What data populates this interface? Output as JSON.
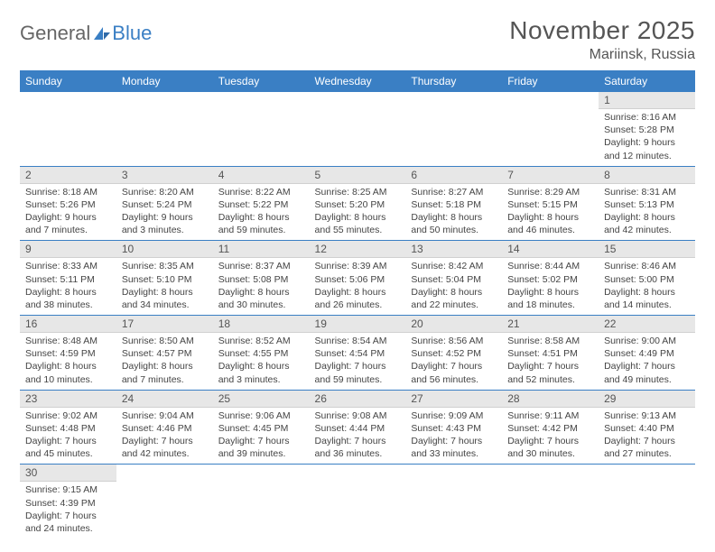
{
  "logo": {
    "text1": "General",
    "text2": "Blue"
  },
  "title": "November 2025",
  "location": "Mariinsk, Russia",
  "colors": {
    "header_bg": "#3a7fc4",
    "header_text": "#ffffff",
    "daynum_bg": "#e7e7e7",
    "separator": "#3a7fc4",
    "body_text": "#444444"
  },
  "weekdays": [
    "Sunday",
    "Monday",
    "Tuesday",
    "Wednesday",
    "Thursday",
    "Friday",
    "Saturday"
  ],
  "weeks": [
    [
      {
        "n": "",
        "l1": "",
        "l2": "",
        "l3": "",
        "l4": ""
      },
      {
        "n": "",
        "l1": "",
        "l2": "",
        "l3": "",
        "l4": ""
      },
      {
        "n": "",
        "l1": "",
        "l2": "",
        "l3": "",
        "l4": ""
      },
      {
        "n": "",
        "l1": "",
        "l2": "",
        "l3": "",
        "l4": ""
      },
      {
        "n": "",
        "l1": "",
        "l2": "",
        "l3": "",
        "l4": ""
      },
      {
        "n": "",
        "l1": "",
        "l2": "",
        "l3": "",
        "l4": ""
      },
      {
        "n": "1",
        "l1": "Sunrise: 8:16 AM",
        "l2": "Sunset: 5:28 PM",
        "l3": "Daylight: 9 hours",
        "l4": "and 12 minutes."
      }
    ],
    [
      {
        "n": "2",
        "l1": "Sunrise: 8:18 AM",
        "l2": "Sunset: 5:26 PM",
        "l3": "Daylight: 9 hours",
        "l4": "and 7 minutes."
      },
      {
        "n": "3",
        "l1": "Sunrise: 8:20 AM",
        "l2": "Sunset: 5:24 PM",
        "l3": "Daylight: 9 hours",
        "l4": "and 3 minutes."
      },
      {
        "n": "4",
        "l1": "Sunrise: 8:22 AM",
        "l2": "Sunset: 5:22 PM",
        "l3": "Daylight: 8 hours",
        "l4": "and 59 minutes."
      },
      {
        "n": "5",
        "l1": "Sunrise: 8:25 AM",
        "l2": "Sunset: 5:20 PM",
        "l3": "Daylight: 8 hours",
        "l4": "and 55 minutes."
      },
      {
        "n": "6",
        "l1": "Sunrise: 8:27 AM",
        "l2": "Sunset: 5:18 PM",
        "l3": "Daylight: 8 hours",
        "l4": "and 50 minutes."
      },
      {
        "n": "7",
        "l1": "Sunrise: 8:29 AM",
        "l2": "Sunset: 5:15 PM",
        "l3": "Daylight: 8 hours",
        "l4": "and 46 minutes."
      },
      {
        "n": "8",
        "l1": "Sunrise: 8:31 AM",
        "l2": "Sunset: 5:13 PM",
        "l3": "Daylight: 8 hours",
        "l4": "and 42 minutes."
      }
    ],
    [
      {
        "n": "9",
        "l1": "Sunrise: 8:33 AM",
        "l2": "Sunset: 5:11 PM",
        "l3": "Daylight: 8 hours",
        "l4": "and 38 minutes."
      },
      {
        "n": "10",
        "l1": "Sunrise: 8:35 AM",
        "l2": "Sunset: 5:10 PM",
        "l3": "Daylight: 8 hours",
        "l4": "and 34 minutes."
      },
      {
        "n": "11",
        "l1": "Sunrise: 8:37 AM",
        "l2": "Sunset: 5:08 PM",
        "l3": "Daylight: 8 hours",
        "l4": "and 30 minutes."
      },
      {
        "n": "12",
        "l1": "Sunrise: 8:39 AM",
        "l2": "Sunset: 5:06 PM",
        "l3": "Daylight: 8 hours",
        "l4": "and 26 minutes."
      },
      {
        "n": "13",
        "l1": "Sunrise: 8:42 AM",
        "l2": "Sunset: 5:04 PM",
        "l3": "Daylight: 8 hours",
        "l4": "and 22 minutes."
      },
      {
        "n": "14",
        "l1": "Sunrise: 8:44 AM",
        "l2": "Sunset: 5:02 PM",
        "l3": "Daylight: 8 hours",
        "l4": "and 18 minutes."
      },
      {
        "n": "15",
        "l1": "Sunrise: 8:46 AM",
        "l2": "Sunset: 5:00 PM",
        "l3": "Daylight: 8 hours",
        "l4": "and 14 minutes."
      }
    ],
    [
      {
        "n": "16",
        "l1": "Sunrise: 8:48 AM",
        "l2": "Sunset: 4:59 PM",
        "l3": "Daylight: 8 hours",
        "l4": "and 10 minutes."
      },
      {
        "n": "17",
        "l1": "Sunrise: 8:50 AM",
        "l2": "Sunset: 4:57 PM",
        "l3": "Daylight: 8 hours",
        "l4": "and 7 minutes."
      },
      {
        "n": "18",
        "l1": "Sunrise: 8:52 AM",
        "l2": "Sunset: 4:55 PM",
        "l3": "Daylight: 8 hours",
        "l4": "and 3 minutes."
      },
      {
        "n": "19",
        "l1": "Sunrise: 8:54 AM",
        "l2": "Sunset: 4:54 PM",
        "l3": "Daylight: 7 hours",
        "l4": "and 59 minutes."
      },
      {
        "n": "20",
        "l1": "Sunrise: 8:56 AM",
        "l2": "Sunset: 4:52 PM",
        "l3": "Daylight: 7 hours",
        "l4": "and 56 minutes."
      },
      {
        "n": "21",
        "l1": "Sunrise: 8:58 AM",
        "l2": "Sunset: 4:51 PM",
        "l3": "Daylight: 7 hours",
        "l4": "and 52 minutes."
      },
      {
        "n": "22",
        "l1": "Sunrise: 9:00 AM",
        "l2": "Sunset: 4:49 PM",
        "l3": "Daylight: 7 hours",
        "l4": "and 49 minutes."
      }
    ],
    [
      {
        "n": "23",
        "l1": "Sunrise: 9:02 AM",
        "l2": "Sunset: 4:48 PM",
        "l3": "Daylight: 7 hours",
        "l4": "and 45 minutes."
      },
      {
        "n": "24",
        "l1": "Sunrise: 9:04 AM",
        "l2": "Sunset: 4:46 PM",
        "l3": "Daylight: 7 hours",
        "l4": "and 42 minutes."
      },
      {
        "n": "25",
        "l1": "Sunrise: 9:06 AM",
        "l2": "Sunset: 4:45 PM",
        "l3": "Daylight: 7 hours",
        "l4": "and 39 minutes."
      },
      {
        "n": "26",
        "l1": "Sunrise: 9:08 AM",
        "l2": "Sunset: 4:44 PM",
        "l3": "Daylight: 7 hours",
        "l4": "and 36 minutes."
      },
      {
        "n": "27",
        "l1": "Sunrise: 9:09 AM",
        "l2": "Sunset: 4:43 PM",
        "l3": "Daylight: 7 hours",
        "l4": "and 33 minutes."
      },
      {
        "n": "28",
        "l1": "Sunrise: 9:11 AM",
        "l2": "Sunset: 4:42 PM",
        "l3": "Daylight: 7 hours",
        "l4": "and 30 minutes."
      },
      {
        "n": "29",
        "l1": "Sunrise: 9:13 AM",
        "l2": "Sunset: 4:40 PM",
        "l3": "Daylight: 7 hours",
        "l4": "and 27 minutes."
      }
    ],
    [
      {
        "n": "30",
        "l1": "Sunrise: 9:15 AM",
        "l2": "Sunset: 4:39 PM",
        "l3": "Daylight: 7 hours",
        "l4": "and 24 minutes."
      },
      {
        "n": "",
        "l1": "",
        "l2": "",
        "l3": "",
        "l4": ""
      },
      {
        "n": "",
        "l1": "",
        "l2": "",
        "l3": "",
        "l4": ""
      },
      {
        "n": "",
        "l1": "",
        "l2": "",
        "l3": "",
        "l4": ""
      },
      {
        "n": "",
        "l1": "",
        "l2": "",
        "l3": "",
        "l4": ""
      },
      {
        "n": "",
        "l1": "",
        "l2": "",
        "l3": "",
        "l4": ""
      },
      {
        "n": "",
        "l1": "",
        "l2": "",
        "l3": "",
        "l4": ""
      }
    ]
  ]
}
